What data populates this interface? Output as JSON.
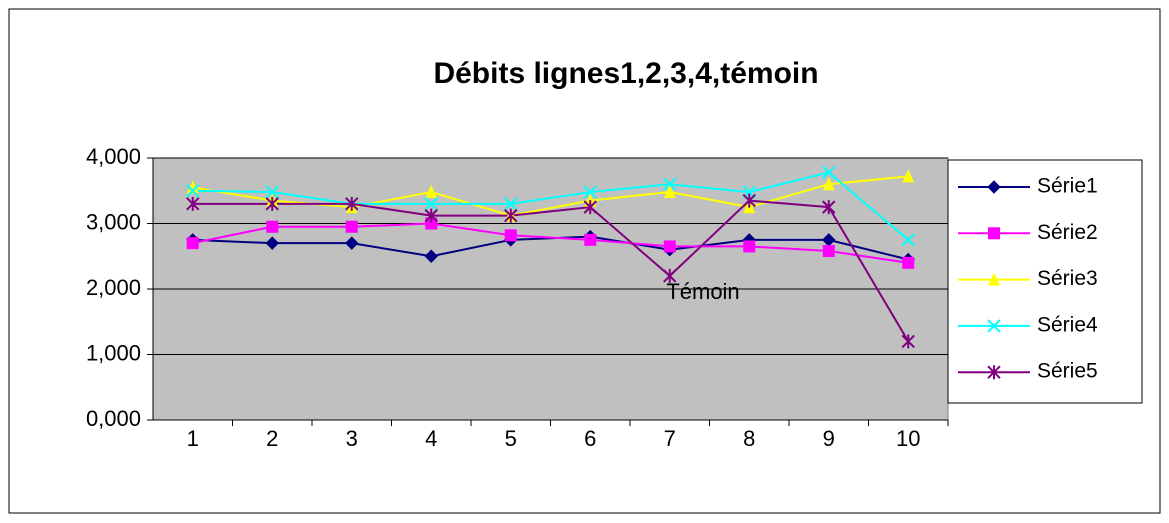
{
  "chart_data": {
    "type": "line",
    "title": "Débits lignes1,2,3,4,témoin",
    "categories": [
      "1",
      "2",
      "3",
      "4",
      "5",
      "6",
      "7",
      "8",
      "9",
      "10"
    ],
    "series": [
      {
        "name": "Série1",
        "color": "#000080",
        "marker": "diamond",
        "values": [
          2.75,
          2.7,
          2.7,
          2.5,
          2.75,
          2.8,
          2.6,
          2.75,
          2.75,
          2.45
        ]
      },
      {
        "name": "Série2",
        "color": "#ff00ff",
        "marker": "square",
        "values": [
          2.7,
          2.95,
          2.95,
          3.0,
          2.82,
          2.75,
          2.65,
          2.65,
          2.58,
          2.4
        ]
      },
      {
        "name": "Série3",
        "color": "#ffff00",
        "marker": "triangle",
        "values": [
          3.55,
          3.35,
          3.25,
          3.48,
          3.12,
          3.35,
          3.48,
          3.25,
          3.6,
          3.72
        ]
      },
      {
        "name": "Série4",
        "color": "#00ffff",
        "marker": "x",
        "values": [
          3.5,
          3.48,
          3.3,
          3.3,
          3.3,
          3.48,
          3.6,
          3.48,
          3.78,
          2.75
        ]
      },
      {
        "name": "Série5",
        "color": "#800080",
        "marker": "star",
        "values": [
          3.3,
          3.3,
          3.3,
          3.12,
          3.12,
          3.25,
          2.2,
          3.35,
          3.25,
          1.2
        ]
      }
    ],
    "annotations": [
      "Témoin"
    ],
    "ylim": [
      0,
      4
    ],
    "yticks": [
      {
        "value": 0,
        "label": "0,000"
      },
      {
        "value": 1,
        "label": "1,000"
      },
      {
        "value": 2,
        "label": "2,000"
      },
      {
        "value": 3,
        "label": "3,000"
      },
      {
        "value": 4,
        "label": "4,000"
      }
    ],
    "grid": true,
    "legend": "right"
  }
}
